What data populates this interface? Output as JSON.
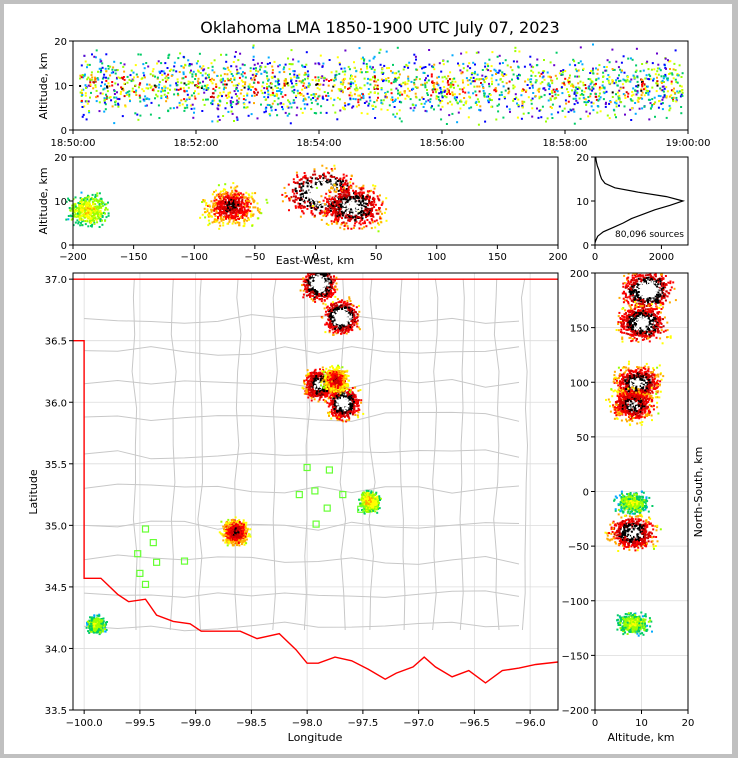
{
  "title": "Oklahoma LMA 1850-1900 UTC July 07, 2023",
  "colors": {
    "border_state": "#ff0000",
    "county_lines": "#c8c8c8",
    "station_marker": "#66ff33",
    "background": "#ffffff"
  },
  "time_height": {
    "ylabel": "Altitude, km",
    "ylim": [
      0,
      20
    ],
    "yticks": [
      "0",
      "10",
      "20"
    ],
    "xticks": [
      "18:50:00",
      "18:52:00",
      "18:54:00",
      "18:56:00",
      "18:58:00",
      "19:00:00"
    ]
  },
  "ew_height": {
    "xlabel": "East-West, km",
    "ylabel": "Altitude, km",
    "xlim": [
      -200,
      200
    ],
    "ylim": [
      0,
      20
    ],
    "xticks": [
      "−200",
      "−150",
      "−100",
      "−50",
      "0",
      "50",
      "100",
      "150",
      "200"
    ],
    "yticks": [
      "0",
      "10",
      "20"
    ]
  },
  "histogram": {
    "xticks": [
      "0",
      "2000"
    ],
    "yticks": [
      "0",
      "10",
      "20"
    ],
    "annotation": "80,096 sources"
  },
  "plan_view": {
    "xlabel": "Longitude",
    "ylabel": "Latitude",
    "xlim": [
      -100.1,
      -95.75
    ],
    "ylim": [
      33.5,
      37.05
    ],
    "xticks": [
      "−100.0",
      "−99.5",
      "−99.0",
      "−98.5",
      "−98.0",
      "−97.5",
      "−97.0",
      "−96.5",
      "−96.0"
    ],
    "yticks": [
      "33.5",
      "34.0",
      "34.5",
      "35.0",
      "35.5",
      "36.0",
      "36.5",
      "37.0"
    ]
  },
  "ns_height": {
    "xlabel": "Altitude, km",
    "ylabel": "North-South, km",
    "xticks": [
      "0",
      "10",
      "20"
    ],
    "yticks": [
      "−200",
      "−150",
      "−100",
      "−50",
      "0",
      "50",
      "100",
      "150",
      "200"
    ]
  },
  "chart_data": [
    {
      "type": "scatter",
      "name": "time-height",
      "x_unit": "UTC",
      "y_unit": "km",
      "ylim": [
        0,
        20
      ],
      "x": [
        "18:50:00",
        "18:52:00",
        "18:54:00",
        "18:56:00",
        "18:58:00",
        "19:00:00"
      ],
      "source_altitude_band_km": [
        1,
        20
      ],
      "peak_density_altitude_km": 10
    },
    {
      "type": "heatmap",
      "name": "east-west vs altitude",
      "xlim": [
        -200,
        200
      ],
      "ylim": [
        0,
        20
      ],
      "clusters": [
        {
          "x_km": -188,
          "alt_km": 8,
          "intensity": 0.45
        },
        {
          "x_km": -70,
          "alt_km": 9,
          "intensity": 0.75
        },
        {
          "x_km": 5,
          "alt_km": 12,
          "intensity": 1.0
        },
        {
          "x_km": 30,
          "alt_km": 9,
          "intensity": 0.9
        }
      ]
    },
    {
      "type": "line",
      "name": "altitude histogram",
      "x_unit": "source count",
      "y_unit": "km",
      "xlim": [
        0,
        2800
      ],
      "ylim": [
        0,
        20
      ],
      "points": [
        [
          0,
          0.5
        ],
        [
          20,
          1
        ],
        [
          80,
          2
        ],
        [
          250,
          3
        ],
        [
          550,
          4
        ],
        [
          850,
          5
        ],
        [
          1100,
          6
        ],
        [
          1450,
          7
        ],
        [
          1800,
          8
        ],
        [
          2250,
          9
        ],
        [
          2650,
          10
        ],
        [
          2150,
          11
        ],
        [
          1300,
          12
        ],
        [
          600,
          13
        ],
        [
          300,
          14
        ],
        [
          200,
          15
        ],
        [
          150,
          16
        ],
        [
          120,
          17
        ],
        [
          70,
          18
        ],
        [
          40,
          19
        ],
        [
          20,
          20
        ]
      ],
      "total_sources": 80096
    },
    {
      "type": "heatmap",
      "name": "plan view",
      "xlim": [
        -100.1,
        -95.75
      ],
      "ylim": [
        33.5,
        37.05
      ],
      "clusters": [
        {
          "lon": -99.9,
          "lat": 34.2,
          "intensity": 0.4
        },
        {
          "lon": -98.65,
          "lat": 34.95,
          "intensity": 0.75
        },
        {
          "lon": -97.45,
          "lat": 35.2,
          "intensity": 0.5
        },
        {
          "lon": -97.9,
          "lat": 36.15,
          "intensity": 0.9
        },
        {
          "lon": -97.68,
          "lat": 36.0,
          "intensity": 0.95
        },
        {
          "lon": -97.75,
          "lat": 36.19,
          "intensity": 0.7
        },
        {
          "lon": -97.7,
          "lat": 36.7,
          "intensity": 1.0
        },
        {
          "lon": -97.9,
          "lat": 36.97,
          "intensity": 1.0
        }
      ],
      "stations": [
        {
          "lon": -98.0,
          "lat": 35.47
        },
        {
          "lon": -97.8,
          "lat": 35.45
        },
        {
          "lon": -98.07,
          "lat": 35.25
        },
        {
          "lon": -97.93,
          "lat": 35.28
        },
        {
          "lon": -97.68,
          "lat": 35.25
        },
        {
          "lon": -97.82,
          "lat": 35.14
        },
        {
          "lon": -97.52,
          "lat": 35.13
        },
        {
          "lon": -97.92,
          "lat": 35.01
        },
        {
          "lon": -99.45,
          "lat": 34.97
        },
        {
          "lon": -99.38,
          "lat": 34.86
        },
        {
          "lon": -99.52,
          "lat": 34.77
        },
        {
          "lon": -99.35,
          "lat": 34.7
        },
        {
          "lon": -99.1,
          "lat": 34.71
        },
        {
          "lon": -99.5,
          "lat": 34.61
        },
        {
          "lon": -99.45,
          "lat": 34.52
        }
      ]
    },
    {
      "type": "heatmap",
      "name": "altitude vs north-south",
      "xlim": [
        0,
        20
      ],
      "ylim": [
        -200,
        200
      ],
      "clusters": [
        {
          "alt_km": 11,
          "y_km": 185,
          "intensity": 1.0
        },
        {
          "alt_km": 10,
          "y_km": 155,
          "intensity": 0.95
        },
        {
          "alt_km": 9,
          "y_km": 100,
          "intensity": 0.9
        },
        {
          "alt_km": 8,
          "y_km": 80,
          "intensity": 0.85
        },
        {
          "alt_km": 8,
          "y_km": -10,
          "intensity": 0.4
        },
        {
          "alt_km": 8,
          "y_km": -37,
          "intensity": 0.9
        },
        {
          "alt_km": 8,
          "y_km": -120,
          "intensity": 0.4
        }
      ]
    }
  ]
}
